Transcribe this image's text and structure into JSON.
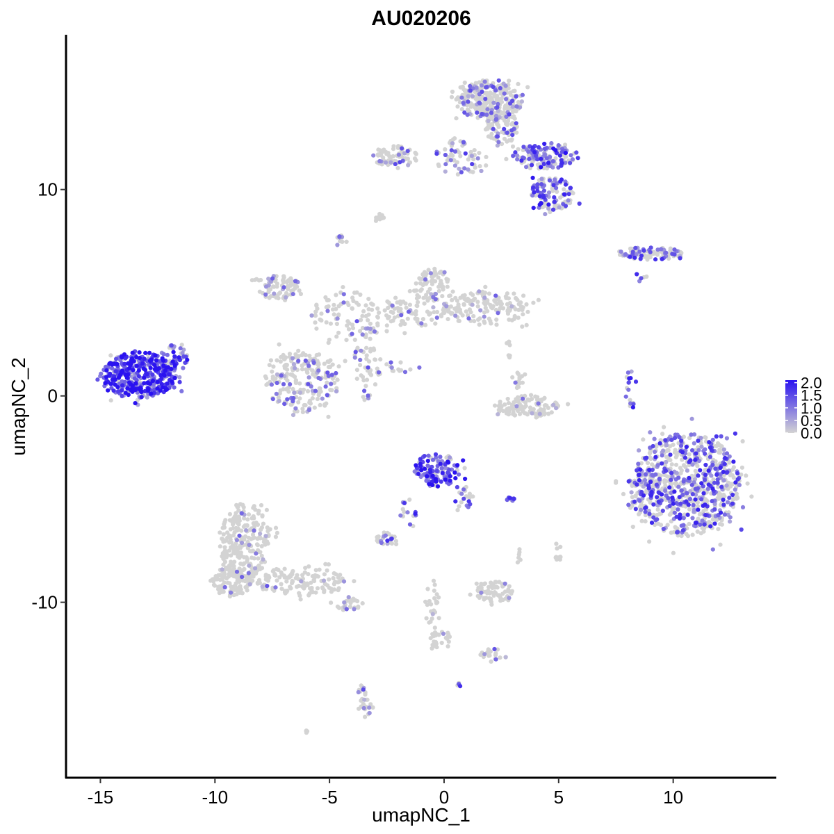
{
  "chart_data": {
    "type": "scatter",
    "title": "AU020206",
    "xlabel": "umapNC_1",
    "ylabel": "umapNC_2",
    "xlim": [
      -16.5,
      14.5
    ],
    "ylim": [
      -18.5,
      17.5
    ],
    "x_ticks": [
      -15,
      -10,
      -5,
      0,
      5,
      10
    ],
    "y_ticks": [
      -10,
      0,
      10
    ],
    "x_tick_labels": [
      "-15",
      "-10",
      "-5",
      "0",
      "5",
      "10"
    ],
    "y_tick_labels": [
      "-10",
      "0",
      "10"
    ],
    "grid": false,
    "legend": {
      "placement": "right",
      "type": "colorbar",
      "range": [
        0,
        2.1
      ],
      "ticks": [
        0,
        0.5,
        1,
        1.5,
        2
      ],
      "tick_labels": [
        "0.0",
        "0.5",
        "1.0",
        "1.5",
        "2.0"
      ],
      "low_color": "#d3d3d3",
      "high_color": "#2a12f0"
    },
    "clusters": [
      {
        "cx": -13.3,
        "cy": 1.0,
        "rx": 1.6,
        "ry": 1.1,
        "n": 420,
        "expr": 0.85,
        "bias": 0.9
      },
      {
        "cx": -11.8,
        "cy": 1.8,
        "rx": 0.6,
        "ry": 0.7,
        "n": 50,
        "expr": 0.75,
        "bias": 0.85
      },
      {
        "cx": -6.2,
        "cy": 0.7,
        "rx": 1.6,
        "ry": 1.5,
        "n": 230,
        "expr": 0.2,
        "bias": 0.25
      },
      {
        "cx": -7.2,
        "cy": 5.3,
        "rx": 1.1,
        "ry": 0.6,
        "n": 80,
        "expr": 0.15,
        "bias": 0.25
      },
      {
        "cx": -4.3,
        "cy": 3.8,
        "rx": 1.5,
        "ry": 1.3,
        "n": 90,
        "expr": 0.15,
        "bias": 0.3
      },
      {
        "cx": -1.3,
        "cy": 4.1,
        "rx": 1.5,
        "ry": 0.8,
        "n": 80,
        "expr": 0.12,
        "bias": 0.25
      },
      {
        "cx": -0.6,
        "cy": 5.4,
        "rx": 0.8,
        "ry": 0.8,
        "n": 70,
        "expr": 0.08,
        "bias": 0.2
      },
      {
        "cx": 1.8,
        "cy": 4.2,
        "rx": 1.9,
        "ry": 0.8,
        "n": 150,
        "expr": 0.1,
        "bias": 0.2
      },
      {
        "cx": -3.4,
        "cy": 1.6,
        "rx": 0.5,
        "ry": 1.8,
        "n": 50,
        "expr": 0.25,
        "bias": 0.3
      },
      {
        "cx": -2.1,
        "cy": 1.3,
        "rx": 0.9,
        "ry": 0.4,
        "n": 20,
        "expr": 0.2,
        "bias": 0.3
      },
      {
        "cx": -4.5,
        "cy": 7.5,
        "rx": 0.3,
        "ry": 0.3,
        "n": 10,
        "expr": 0.1,
        "bias": 0.2
      },
      {
        "cx": 3.6,
        "cy": -0.5,
        "rx": 1.4,
        "ry": 0.5,
        "n": 130,
        "expr": 0.05,
        "bias": 0.15
      },
      {
        "cx": 3.2,
        "cy": 0.8,
        "rx": 0.3,
        "ry": 0.4,
        "n": 15,
        "expr": 0.05,
        "bias": 0.1
      },
      {
        "cx": 2.8,
        "cy": 2.3,
        "rx": 0.2,
        "ry": 0.5,
        "n": 6,
        "expr": 0.05,
        "bias": 0.1
      },
      {
        "cx": -0.3,
        "cy": -3.6,
        "rx": 1.0,
        "ry": 0.8,
        "n": 120,
        "expr": 0.85,
        "bias": 0.85
      },
      {
        "cx": 0.8,
        "cy": -4.9,
        "rx": 0.4,
        "ry": 0.7,
        "n": 20,
        "expr": 0.4,
        "bias": 0.5
      },
      {
        "cx": -1.6,
        "cy": -5.8,
        "rx": 0.4,
        "ry": 0.8,
        "n": 15,
        "expr": 0.5,
        "bias": 0.6
      },
      {
        "cx": -2.5,
        "cy": -6.9,
        "rx": 0.5,
        "ry": 0.3,
        "n": 30,
        "expr": 0.35,
        "bias": 0.5
      },
      {
        "cx": 2.9,
        "cy": -5.0,
        "rx": 0.2,
        "ry": 0.1,
        "n": 10,
        "expr": 0.5,
        "bias": 0.6
      },
      {
        "cx": 10.6,
        "cy": -4.3,
        "rx": 2.3,
        "ry": 2.5,
        "n": 780,
        "expr": 0.45,
        "bias": 0.55
      },
      {
        "cx": 8.6,
        "cy": -4.5,
        "rx": 0.6,
        "ry": 1.2,
        "n": 50,
        "expr": 0.4,
        "bias": 0.55
      },
      {
        "cx": 8.2,
        "cy": 0.2,
        "rx": 0.3,
        "ry": 0.9,
        "n": 18,
        "expr": 0.5,
        "bias": 0.6
      },
      {
        "cx": 9.0,
        "cy": 6.9,
        "rx": 1.5,
        "ry": 0.3,
        "n": 90,
        "expr": 0.35,
        "bias": 0.5
      },
      {
        "cx": 2.0,
        "cy": 14.3,
        "rx": 1.4,
        "ry": 1.0,
        "n": 300,
        "expr": 0.2,
        "bias": 0.35
      },
      {
        "cx": 2.5,
        "cy": 13.0,
        "rx": 0.7,
        "ry": 0.8,
        "n": 90,
        "expr": 0.2,
        "bias": 0.35
      },
      {
        "cx": 4.4,
        "cy": 11.6,
        "rx": 1.3,
        "ry": 0.6,
        "n": 150,
        "expr": 0.55,
        "bias": 0.65
      },
      {
        "cx": 4.7,
        "cy": 9.8,
        "rx": 1.0,
        "ry": 0.8,
        "n": 110,
        "expr": 0.55,
        "bias": 0.65
      },
      {
        "cx": 0.6,
        "cy": 11.6,
        "rx": 1.0,
        "ry": 1.0,
        "n": 60,
        "expr": 0.3,
        "bias": 0.45
      },
      {
        "cx": -2.1,
        "cy": 11.6,
        "rx": 1.0,
        "ry": 0.5,
        "n": 70,
        "expr": 0.25,
        "bias": 0.35
      },
      {
        "cx": -2.8,
        "cy": 8.6,
        "rx": 0.2,
        "ry": 0.2,
        "n": 10,
        "expr": 0.1,
        "bias": 0.3
      },
      {
        "cx": -8.7,
        "cy": -7.0,
        "rx": 1.1,
        "ry": 1.8,
        "n": 250,
        "expr": 0.05,
        "bias": 0.2
      },
      {
        "cx": -9.3,
        "cy": -9.0,
        "rx": 0.9,
        "ry": 0.7,
        "n": 130,
        "expr": 0.05,
        "bias": 0.2
      },
      {
        "cx": -6.2,
        "cy": -9.0,
        "rx": 2.0,
        "ry": 0.7,
        "n": 130,
        "expr": 0.08,
        "bias": 0.25
      },
      {
        "cx": -4.2,
        "cy": -10.1,
        "rx": 0.6,
        "ry": 0.3,
        "n": 25,
        "expr": 0.2,
        "bias": 0.35
      },
      {
        "cx": 2.2,
        "cy": -9.5,
        "rx": 0.8,
        "ry": 0.5,
        "n": 70,
        "expr": 0.03,
        "bias": 0.15
      },
      {
        "cx": -0.5,
        "cy": -10.5,
        "rx": 0.3,
        "ry": 1.6,
        "n": 30,
        "expr": 0.1,
        "bias": 0.3
      },
      {
        "cx": -0.2,
        "cy": -11.8,
        "rx": 0.5,
        "ry": 0.4,
        "n": 20,
        "expr": 0.05,
        "bias": 0.2
      },
      {
        "cx": 2.2,
        "cy": -12.5,
        "rx": 0.6,
        "ry": 0.3,
        "n": 20,
        "expr": 0.1,
        "bias": 0.3
      },
      {
        "cx": -3.5,
        "cy": -14.8,
        "rx": 0.3,
        "ry": 0.9,
        "n": 30,
        "expr": 0.2,
        "bias": 0.35
      },
      {
        "cx": 5.0,
        "cy": -7.5,
        "rx": 0.2,
        "ry": 0.5,
        "n": 10,
        "expr": 0.02,
        "bias": 0.1
      },
      {
        "cx": 3.3,
        "cy": -7.8,
        "rx": 0.2,
        "ry": 0.3,
        "n": 6,
        "expr": 0.02,
        "bias": 0.1
      },
      {
        "cx": 0.6,
        "cy": -14.0,
        "rx": 0.1,
        "ry": 0.1,
        "n": 4,
        "expr": 0.5,
        "bias": 0.6
      },
      {
        "cx": -6.0,
        "cy": -16.3,
        "rx": 0.1,
        "ry": 0.1,
        "n": 4,
        "expr": 0.3,
        "bias": 0.5
      },
      {
        "cx": 8.6,
        "cy": 5.7,
        "rx": 0.3,
        "ry": 0.3,
        "n": 6,
        "expr": 0.3,
        "bias": 0.5
      }
    ]
  }
}
